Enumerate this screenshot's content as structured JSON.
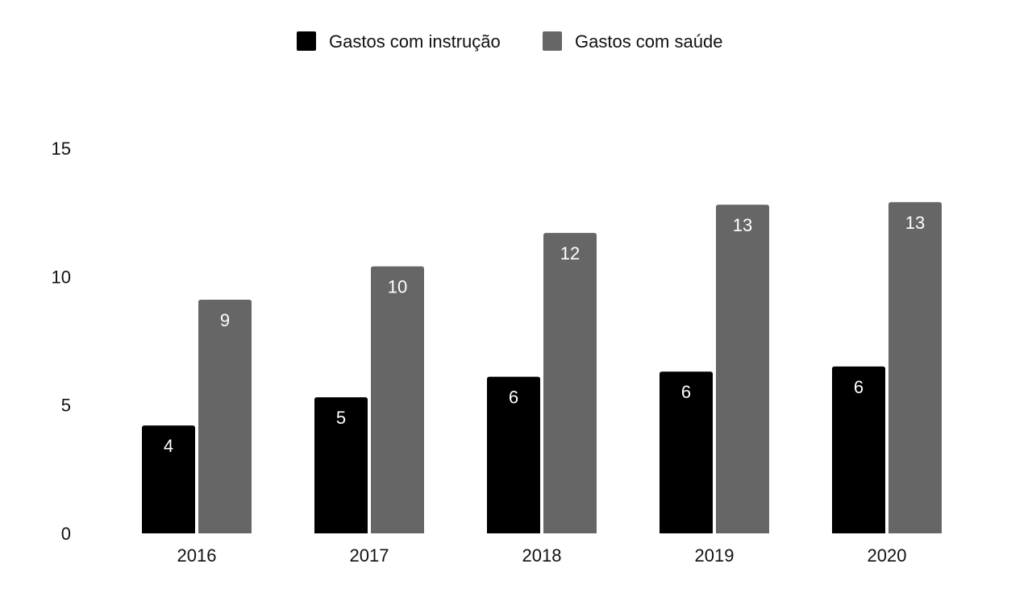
{
  "chart_data": {
    "type": "bar",
    "categories": [
      "2016",
      "2017",
      "2018",
      "2019",
      "2020"
    ],
    "series": [
      {
        "name": "Gastos com instrução",
        "values": [
          4.2,
          5.3,
          6.1,
          6.3,
          6.5
        ],
        "labels": [
          "4",
          "5",
          "6",
          "6",
          "6"
        ],
        "color": "#000000"
      },
      {
        "name": "Gastos com saúde",
        "values": [
          9.1,
          10.4,
          11.7,
          12.8,
          12.9
        ],
        "labels": [
          "9",
          "10",
          "12",
          "13",
          "13"
        ],
        "color": "#666666"
      }
    ],
    "yticks": [
      "0",
      "5",
      "10",
      "15"
    ],
    "ylim": [
      0,
      15
    ],
    "grid": false,
    "legend_position": "top"
  }
}
